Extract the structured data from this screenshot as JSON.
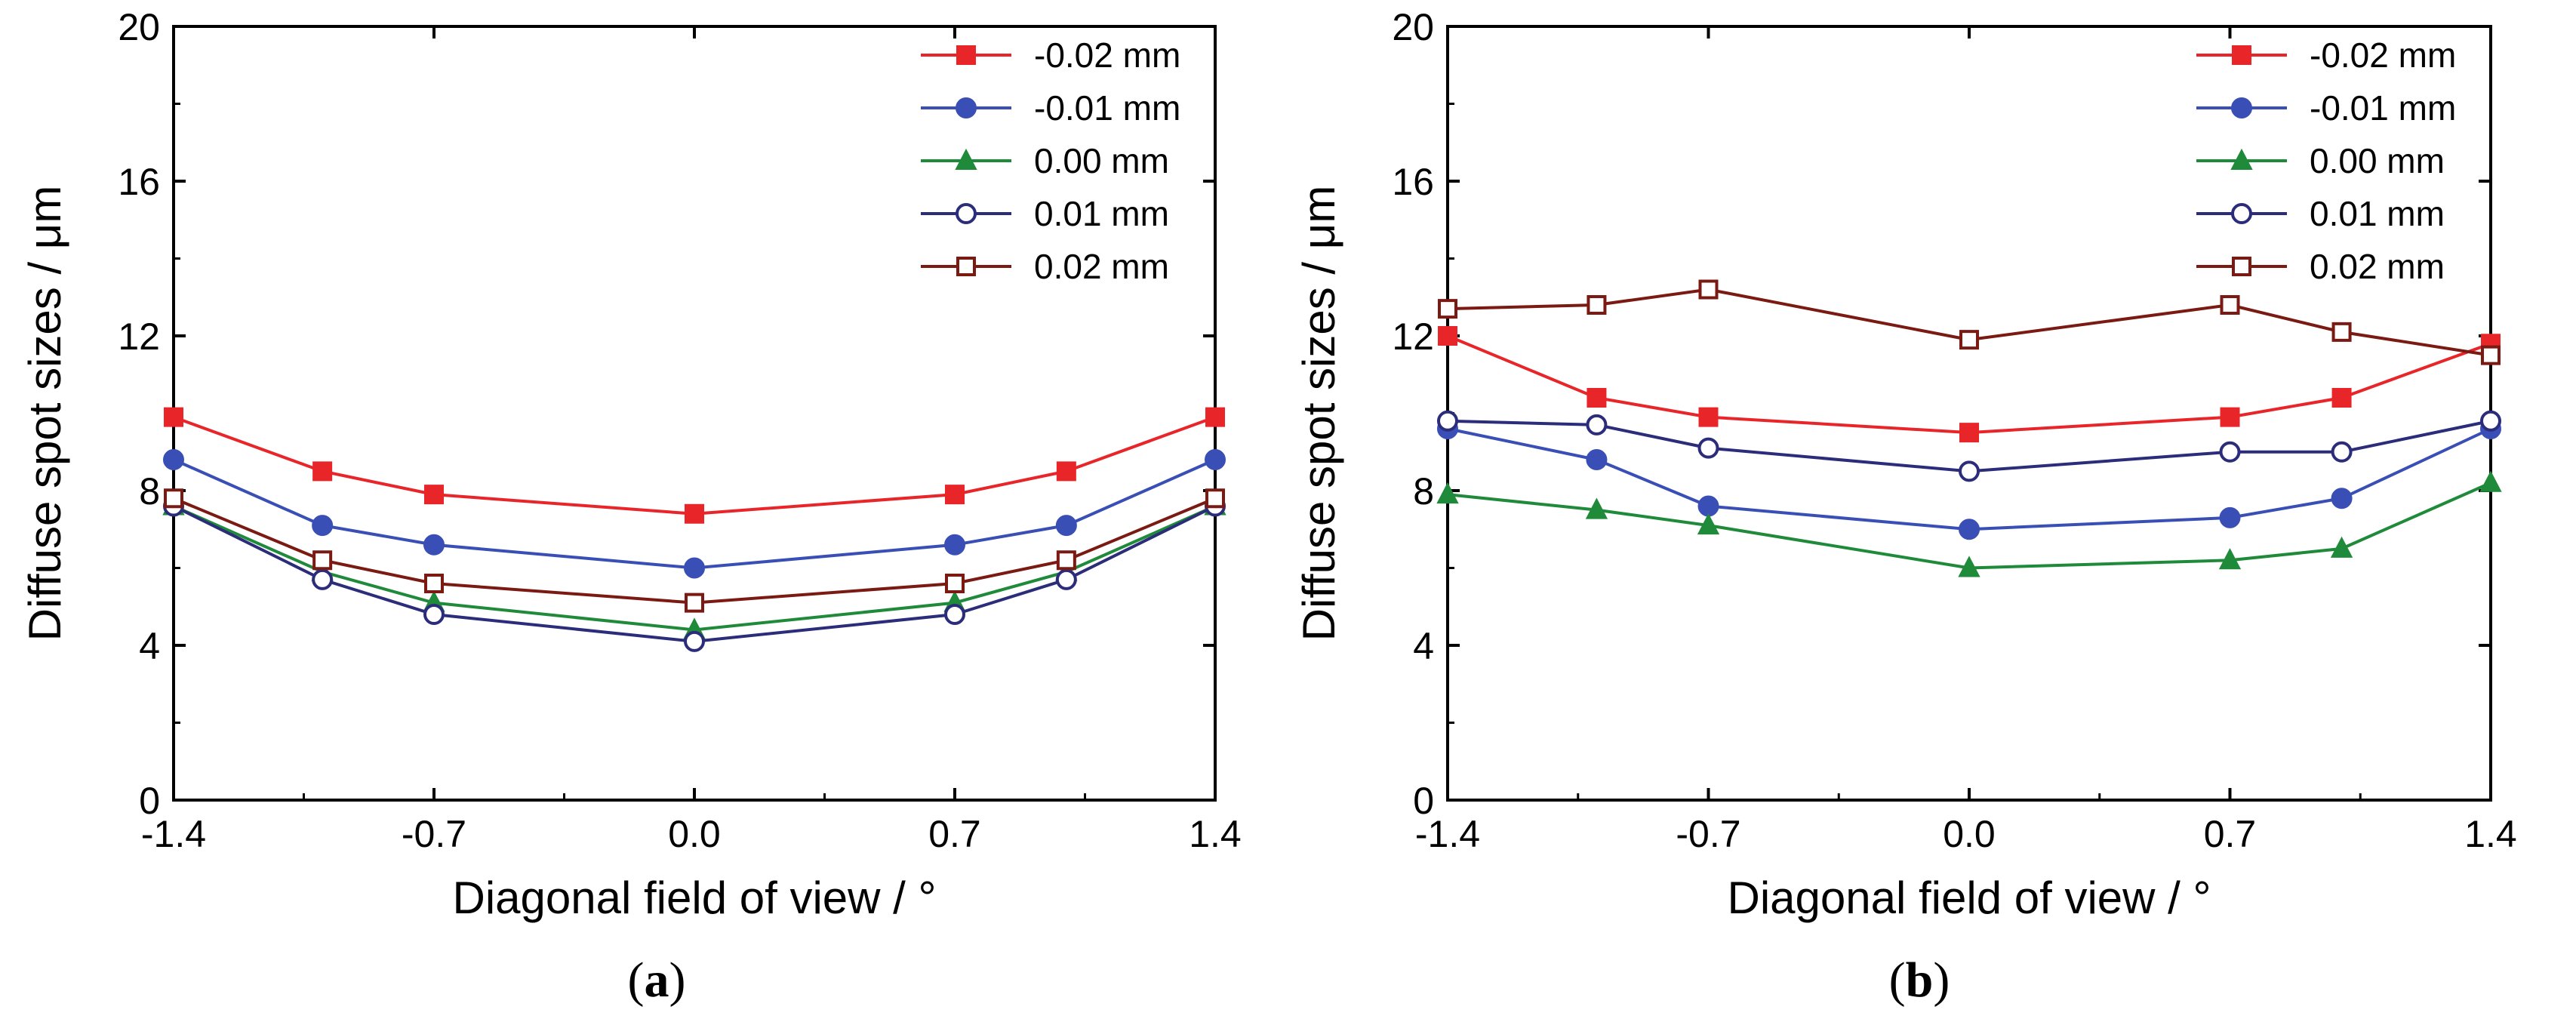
{
  "chart_data": [
    {
      "type": "line",
      "panel_label": "a",
      "xlabel": "Diagonal field of view / °",
      "ylabel": "Diffuse spot sizes / μm",
      "xlim": [
        -1.4,
        1.4
      ],
      "ylim": [
        0,
        20
      ],
      "xticks": [
        -1.4,
        -0.7,
        0.0,
        0.7,
        1.4
      ],
      "xtick_labels": [
        "-1.4",
        "-0.7",
        "0.0",
        "0.7",
        "1.4"
      ],
      "yticks": [
        0,
        4,
        8,
        12,
        16,
        20
      ],
      "ytick_labels": [
        "0",
        "4",
        "8",
        "12",
        "16",
        "20"
      ],
      "legend_position": "top-right",
      "grid": false,
      "x": [
        -1.4,
        -1.0,
        -0.7,
        0.0,
        0.7,
        1.0,
        1.4
      ],
      "series": [
        {
          "name": "-0.02 mm",
          "color": "#e8262a",
          "marker": "square-filled",
          "values": [
            9.9,
            8.5,
            7.9,
            7.4,
            7.9,
            8.5,
            9.9
          ]
        },
        {
          "name": "-0.01 mm",
          "color": "#3a4fb5",
          "marker": "circle-filled",
          "values": [
            8.8,
            7.1,
            6.6,
            6.0,
            6.6,
            7.1,
            8.8
          ]
        },
        {
          "name": "0.00 mm",
          "color": "#1f8a3a",
          "marker": "triangle-filled",
          "values": [
            7.6,
            5.9,
            5.1,
            4.4,
            5.1,
            5.9,
            7.6
          ]
        },
        {
          "name": "0.01 mm",
          "color": "#2b2c7a",
          "marker": "circle-open",
          "values": [
            7.6,
            5.7,
            4.8,
            4.1,
            4.8,
            5.7,
            7.6
          ]
        },
        {
          "name": "0.02 mm",
          "color": "#7a1a12",
          "marker": "square-open",
          "values": [
            7.8,
            6.2,
            5.6,
            5.1,
            5.6,
            6.2,
            7.8
          ]
        }
      ]
    },
    {
      "type": "line",
      "panel_label": "b",
      "xlabel": "Diagonal field of view / °",
      "ylabel": "Diffuse spot sizes / μm",
      "xlim": [
        -1.4,
        1.4
      ],
      "ylim": [
        0,
        20
      ],
      "xticks": [
        -1.4,
        -0.7,
        0.0,
        0.7,
        1.4
      ],
      "xtick_labels": [
        "-1.4",
        "-0.7",
        "0.0",
        "0.7",
        "1.4"
      ],
      "yticks": [
        0,
        4,
        8,
        12,
        16,
        20
      ],
      "ytick_labels": [
        "0",
        "4",
        "8",
        "12",
        "16",
        "20"
      ],
      "legend_position": "top-right",
      "grid": false,
      "x": [
        -1.4,
        -1.0,
        -0.7,
        0.0,
        0.7,
        1.0,
        1.4
      ],
      "series": [
        {
          "name": "-0.02 mm",
          "color": "#e8262a",
          "marker": "square-filled",
          "values": [
            12.0,
            10.4,
            9.9,
            9.5,
            9.9,
            10.4,
            11.8
          ]
        },
        {
          "name": "-0.01 mm",
          "color": "#3a4fb5",
          "marker": "circle-filled",
          "values": [
            9.6,
            8.8,
            7.6,
            7.0,
            7.3,
            7.8,
            9.6
          ]
        },
        {
          "name": "0.00 mm",
          "color": "#1f8a3a",
          "marker": "triangle-filled",
          "values": [
            7.9,
            7.5,
            7.1,
            6.0,
            6.2,
            6.5,
            8.2
          ]
        },
        {
          "name": "0.01 mm",
          "color": "#2b2c7a",
          "marker": "circle-open",
          "values": [
            9.8,
            9.7,
            9.1,
            8.5,
            9.0,
            9.0,
            9.8
          ]
        },
        {
          "name": "0.02 mm",
          "color": "#7a1a12",
          "marker": "square-open",
          "values": [
            12.7,
            12.8,
            13.2,
            11.9,
            12.8,
            12.1,
            11.5
          ]
        }
      ]
    }
  ]
}
